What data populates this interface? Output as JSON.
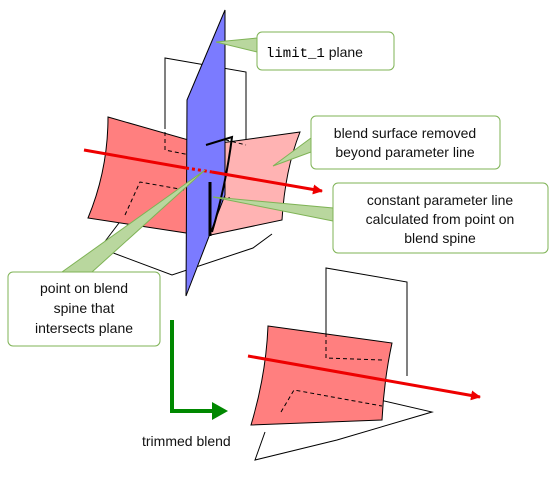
{
  "callouts": {
    "limit_plane": {
      "code": "limit_1",
      "suffix": " plane"
    },
    "blend_removed": {
      "line1": "blend surface removed",
      "line2": "beyond parameter line"
    },
    "constant_param": {
      "line1": "constant parameter line",
      "line2": "calculated from point on",
      "line3": "blend spine"
    },
    "point_on_spine": {
      "line1": "point on blend",
      "line2": "spine that",
      "line3": "intersects plane"
    }
  },
  "labels": {
    "trimmed_blend": "trimmed blend"
  },
  "colors": {
    "plane": "#7b7bff",
    "blend_front": "#ff7f7f",
    "blend_removed": "#ffb3b3",
    "arrow_red": "#ee0000",
    "arrow_green": "#008800",
    "callout_border": "#7fb356",
    "callout_leader": "#b9d79e"
  }
}
